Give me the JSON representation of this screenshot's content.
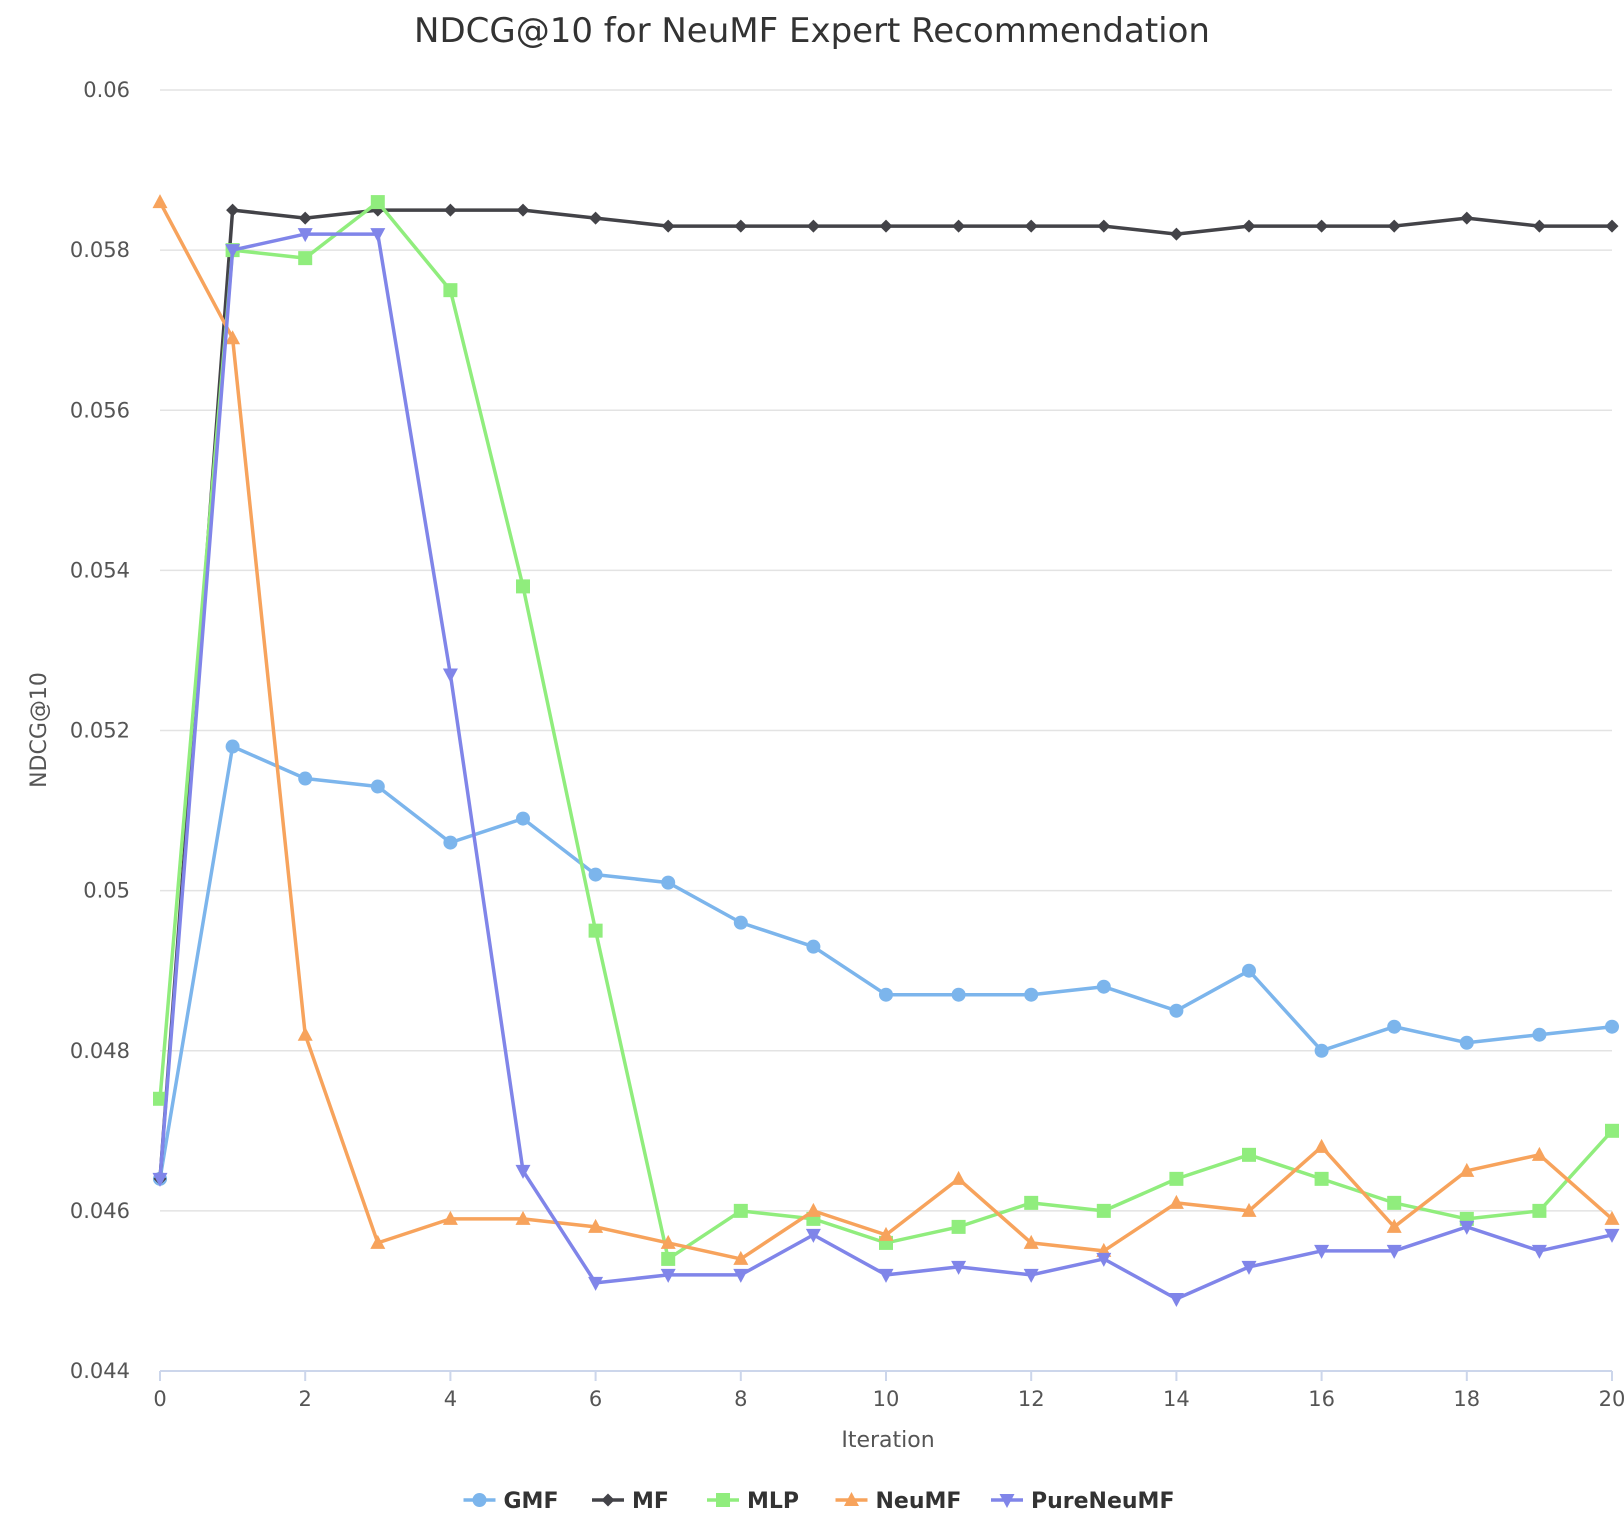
{
  "chart_data": {
    "type": "line",
    "title": "NDCG@10 for NeuMF Expert Recommendation",
    "xlabel": "Iteration",
    "ylabel": "NDCG@10",
    "xlim": [
      0,
      20
    ],
    "ylim": [
      0.044,
      0.06
    ],
    "x_ticks": [
      "0",
      "2",
      "4",
      "6",
      "8",
      "10",
      "12",
      "14",
      "16",
      "18",
      "20"
    ],
    "y_ticks": [
      "0.044",
      "0.046",
      "0.048",
      "0.05",
      "0.052",
      "0.054",
      "0.056",
      "0.058",
      "0.06"
    ],
    "grid": true,
    "legend_position": "bottom-center",
    "x": [
      0,
      1,
      2,
      3,
      4,
      5,
      6,
      7,
      8,
      9,
      10,
      11,
      12,
      13,
      14,
      15,
      16,
      17,
      18,
      19,
      20
    ],
    "series": [
      {
        "name": "GMF",
        "color": "#7cb5ec",
        "marker": "circle",
        "values": [
          0.0464,
          0.0518,
          0.0514,
          0.0513,
          0.0506,
          0.0509,
          0.0502,
          0.0501,
          0.0496,
          0.0493,
          0.0487,
          0.0487,
          0.0487,
          0.0488,
          0.0485,
          0.049,
          0.048,
          0.0483,
          0.0481,
          0.0482,
          0.0483
        ]
      },
      {
        "name": "MF",
        "color": "#434348",
        "marker": "diamond",
        "values": [
          0.0464,
          0.0585,
          0.0584,
          0.0585,
          0.0585,
          0.0585,
          0.0584,
          0.0583,
          0.0583,
          0.0583,
          0.0583,
          0.0583,
          0.0583,
          0.0583,
          0.0582,
          0.0583,
          0.0583,
          0.0583,
          0.0584,
          0.0583,
          0.0583
        ]
      },
      {
        "name": "MLP",
        "color": "#90ed7d",
        "marker": "square",
        "values": [
          0.0474,
          0.058,
          0.0579,
          0.0586,
          0.0575,
          0.0538,
          0.0495,
          0.0454,
          0.046,
          0.0459,
          0.0456,
          0.0458,
          0.0461,
          0.046,
          0.0464,
          0.0467,
          0.0464,
          0.0461,
          0.0459,
          0.046,
          0.047
        ]
      },
      {
        "name": "NeuMF",
        "color": "#f7a35c",
        "marker": "triangle",
        "values": [
          0.0586,
          0.0569,
          0.0482,
          0.0456,
          0.0459,
          0.0459,
          0.0458,
          0.0456,
          0.0454,
          0.046,
          0.0457,
          0.0464,
          0.0456,
          0.0455,
          0.0461,
          0.046,
          0.0468,
          0.0458,
          0.0465,
          0.0467,
          0.0459
        ]
      },
      {
        "name": "PureNeuMF",
        "color": "#8085e9",
        "marker": "triangle-down",
        "values": [
          0.0464,
          0.058,
          0.0582,
          0.0582,
          0.0527,
          0.0465,
          0.0451,
          0.0452,
          0.0452,
          0.0457,
          0.0452,
          0.0453,
          0.0452,
          0.0454,
          0.0449,
          0.0453,
          0.0455,
          0.0455,
          0.0458,
          0.0455,
          0.0457
        ]
      }
    ]
  }
}
